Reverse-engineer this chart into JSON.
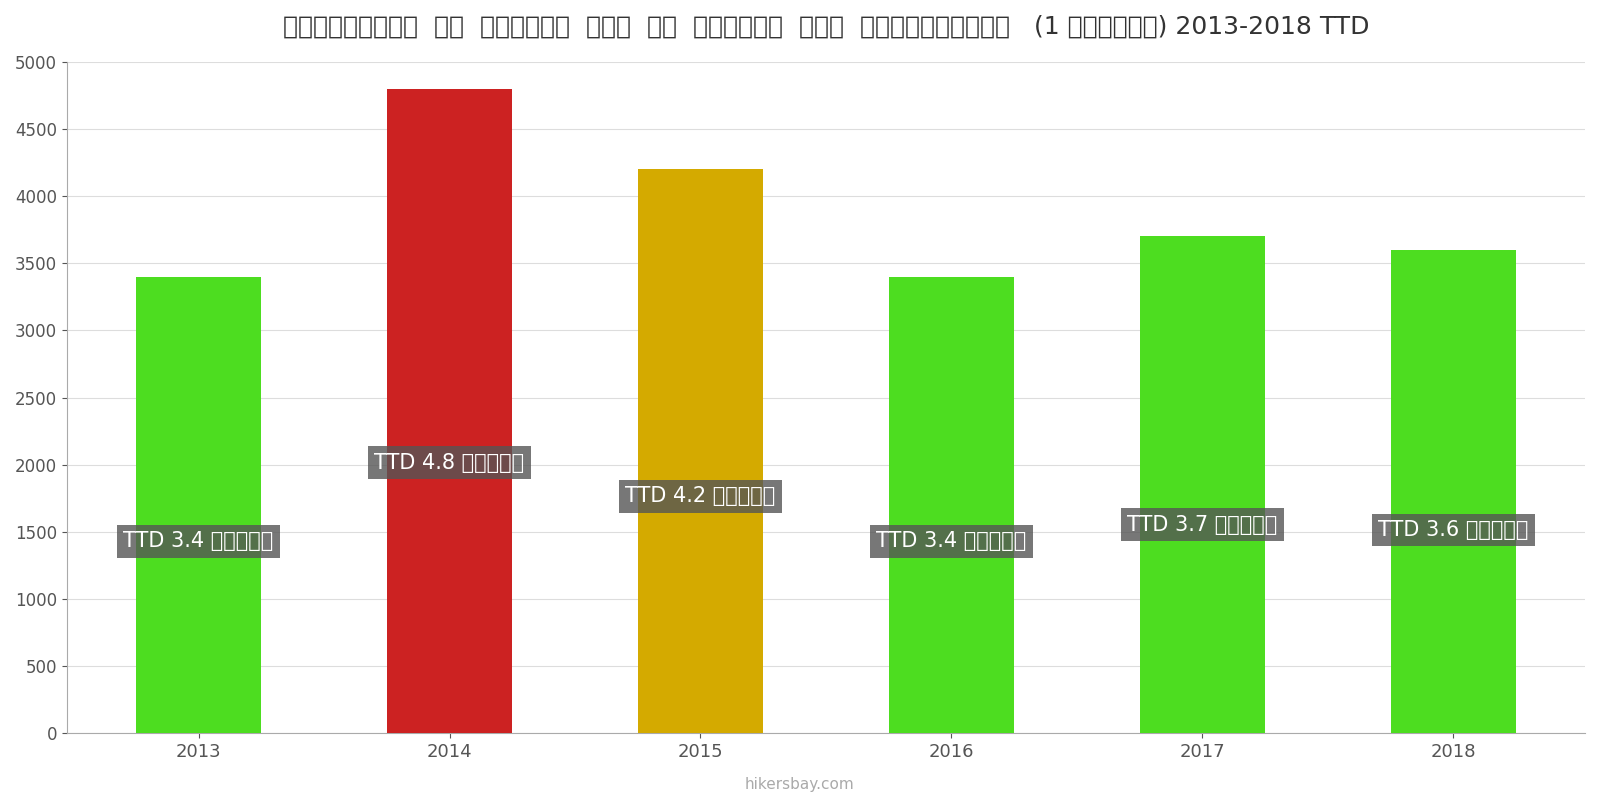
{
  "years": [
    "2013",
    "2014",
    "2015",
    "2016",
    "2017",
    "2018"
  ],
  "values": [
    3400,
    4800,
    4200,
    3400,
    3700,
    3600
  ],
  "bar_colors": [
    "#4ddd20",
    "#cc2222",
    "#d4aa00",
    "#4ddd20",
    "#4ddd20",
    "#4ddd20"
  ],
  "bar_labels": [
    "TTD 3.4 हज़ार",
    "TTD 4.8 हज़ार",
    "TTD 4.2 हज़ार",
    "TTD 3.4 हज़ार",
    "TTD 3.7 हज़ार",
    "TTD 3.6 हज़ार"
  ],
  "title": "त्रिनिदाद  और  टोबैगो  शहर  के  केंद्र  में  अपार्टमेंट   (1 बेडरूम) 2013-2018 TTD",
  "ylim": [
    0,
    5000
  ],
  "yticks": [
    0,
    500,
    1000,
    1500,
    2000,
    2500,
    3000,
    3500,
    4000,
    4500,
    5000
  ],
  "watermark": "hikersbay.com",
  "label_bg_color": "#555555",
  "label_text_color": "#ffffff",
  "background_color": "#ffffff"
}
